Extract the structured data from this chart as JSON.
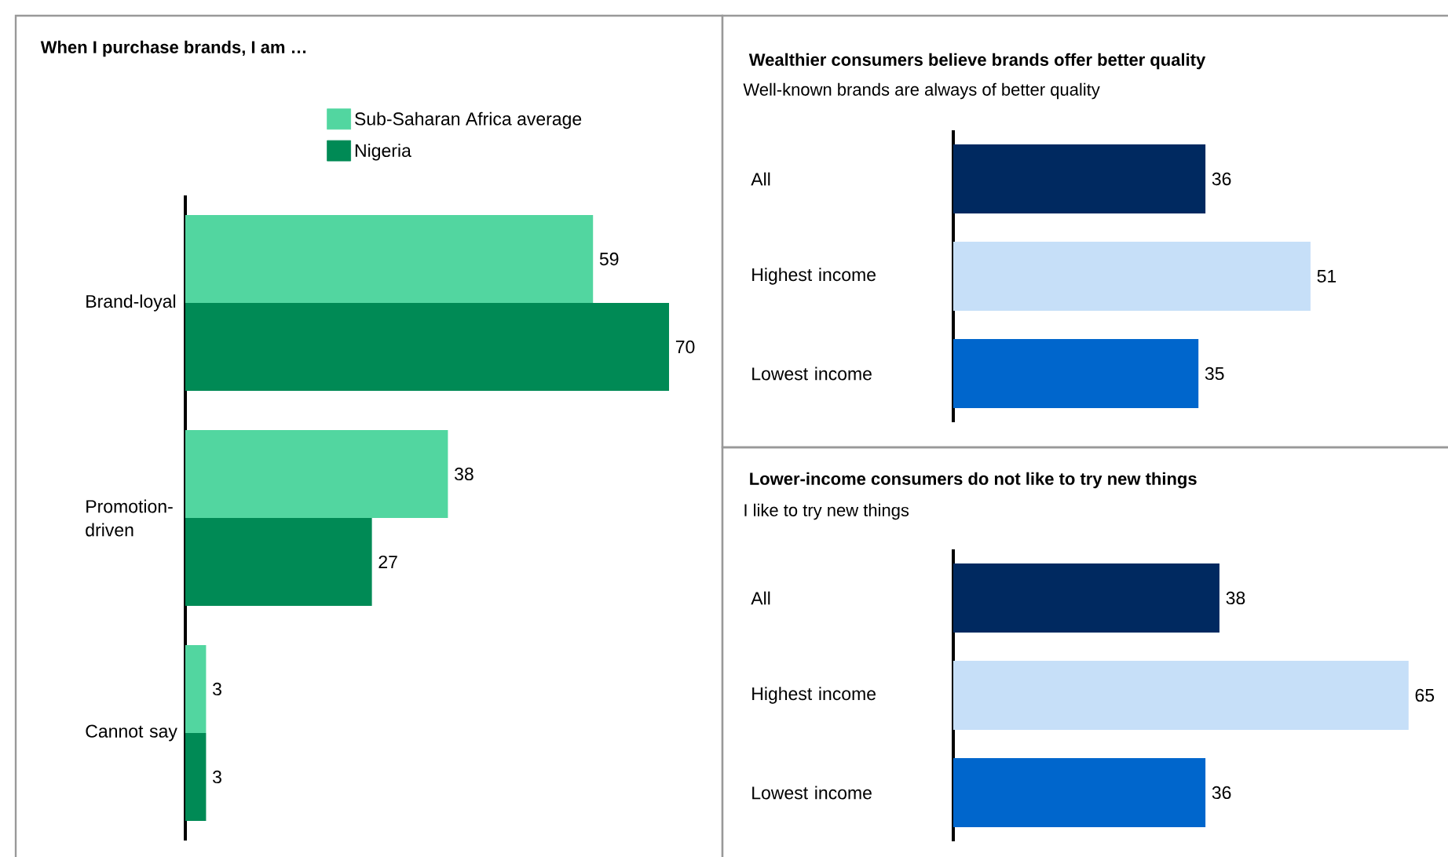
{
  "chart_data": [
    {
      "type": "bar",
      "orientation": "horizontal",
      "title": "When I purchase brands, I am …",
      "categories": [
        "Brand-loyal",
        "Promotion-driven",
        "Cannot say"
      ],
      "data_labels": true,
      "legend": "top right",
      "series": [
        {
          "name": "Sub-Saharan Africa average",
          "color": "#52d6a0",
          "values": [
            59,
            38,
            3
          ]
        },
        {
          "name": "Nigeria",
          "color": "#008a55",
          "values": [
            70,
            27,
            3
          ]
        }
      ]
    },
    {
      "type": "bar",
      "orientation": "horizontal",
      "title": "Wealthier consumers believe brands offer better quality",
      "subtitle": "Well-known brands are always of better quality",
      "categories": [
        "All",
        "Highest income",
        "Lowest income"
      ],
      "data_labels": true,
      "values": [
        36,
        51,
        35
      ],
      "colors": [
        "#002960",
        "#c6dff8",
        "#0066cc"
      ]
    },
    {
      "type": "bar",
      "orientation": "horizontal",
      "title": "Lower-income consumers do not like to try new things",
      "subtitle": "I like to try new things",
      "categories": [
        "All",
        "Highest income",
        "Lowest income"
      ],
      "data_labels": true,
      "values": [
        38,
        65,
        36
      ],
      "colors": [
        "#002960",
        "#c6dff8",
        "#0066cc"
      ]
    }
  ]
}
